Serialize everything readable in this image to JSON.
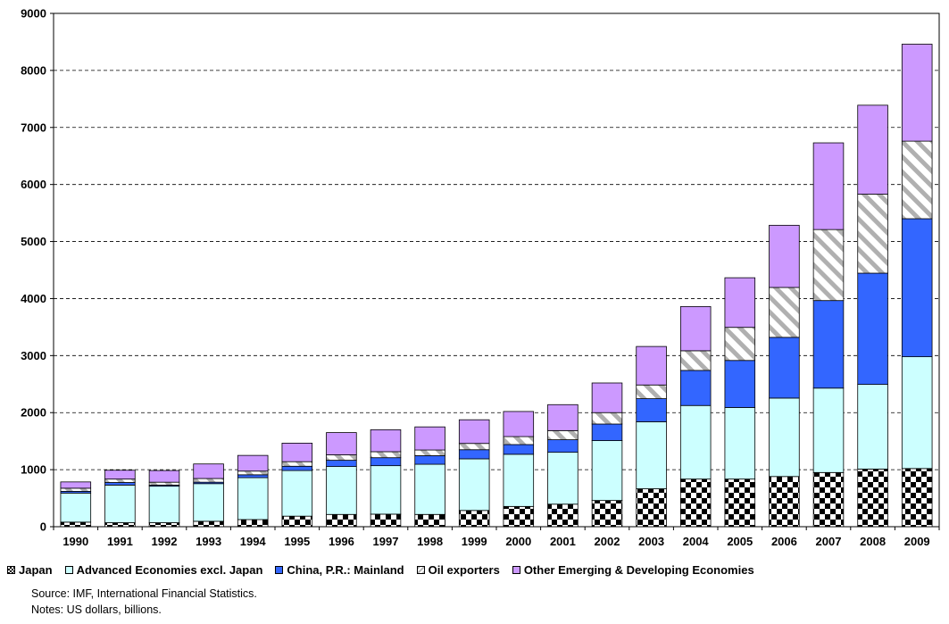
{
  "chart_data": {
    "type": "bar",
    "stacked": true,
    "categories": [
      "1990",
      "1991",
      "1992",
      "1993",
      "1994",
      "1995",
      "1996",
      "1997",
      "1998",
      "1999",
      "2000",
      "2001",
      "2002",
      "2003",
      "2004",
      "2005",
      "2006",
      "2007",
      "2008",
      "2009"
    ],
    "series": [
      {
        "name": "Japan",
        "key": "japan",
        "values": [
          80,
          70,
          70,
          95,
          125,
          185,
          215,
          220,
          215,
          285,
          355,
          395,
          460,
          665,
          835,
          835,
          880,
          950,
          1010,
          1020
        ]
      },
      {
        "name": "Advanced Economies excl. Japan",
        "key": "advanced",
        "values": [
          510,
          660,
          640,
          660,
          735,
          800,
          840,
          850,
          880,
          905,
          915,
          910,
          1050,
          1175,
          1290,
          1255,
          1375,
          1480,
          1485,
          1960
        ]
      },
      {
        "name": "China, P.R.: Mainland",
        "key": "china",
        "values": [
          30,
          45,
          20,
          25,
          50,
          75,
          110,
          140,
          150,
          160,
          170,
          220,
          290,
          405,
          615,
          825,
          1065,
          1535,
          1950,
          2420
        ]
      },
      {
        "name": "Oil exporters",
        "key": "oil",
        "values": [
          55,
          60,
          50,
          65,
          65,
          80,
          95,
          105,
          100,
          110,
          140,
          160,
          200,
          240,
          345,
          580,
          875,
          1245,
          1385,
          1360
        ]
      },
      {
        "name": "Other Emerging & Developing Economies",
        "key": "other",
        "values": [
          110,
          155,
          205,
          255,
          275,
          325,
          390,
          385,
          405,
          415,
          440,
          455,
          520,
          675,
          775,
          870,
          1090,
          1520,
          1560,
          1700
        ]
      }
    ],
    "ylim": [
      0,
      9000
    ],
    "yticks": [
      "0",
      "1000",
      "2000",
      "3000",
      "4000",
      "5000",
      "6000",
      "7000",
      "8000",
      "9000"
    ],
    "grid": true,
    "legend_position": "bottom",
    "colors": {
      "japan": "#000000",
      "advanced": "#ccffff",
      "china": "#3366ff",
      "oil": "#b0b0b0",
      "other": "#cc99ff"
    }
  },
  "notes": {
    "source": "Source: IMF, International Financial Statistics.",
    "units": "Notes: US dollars, billions."
  }
}
